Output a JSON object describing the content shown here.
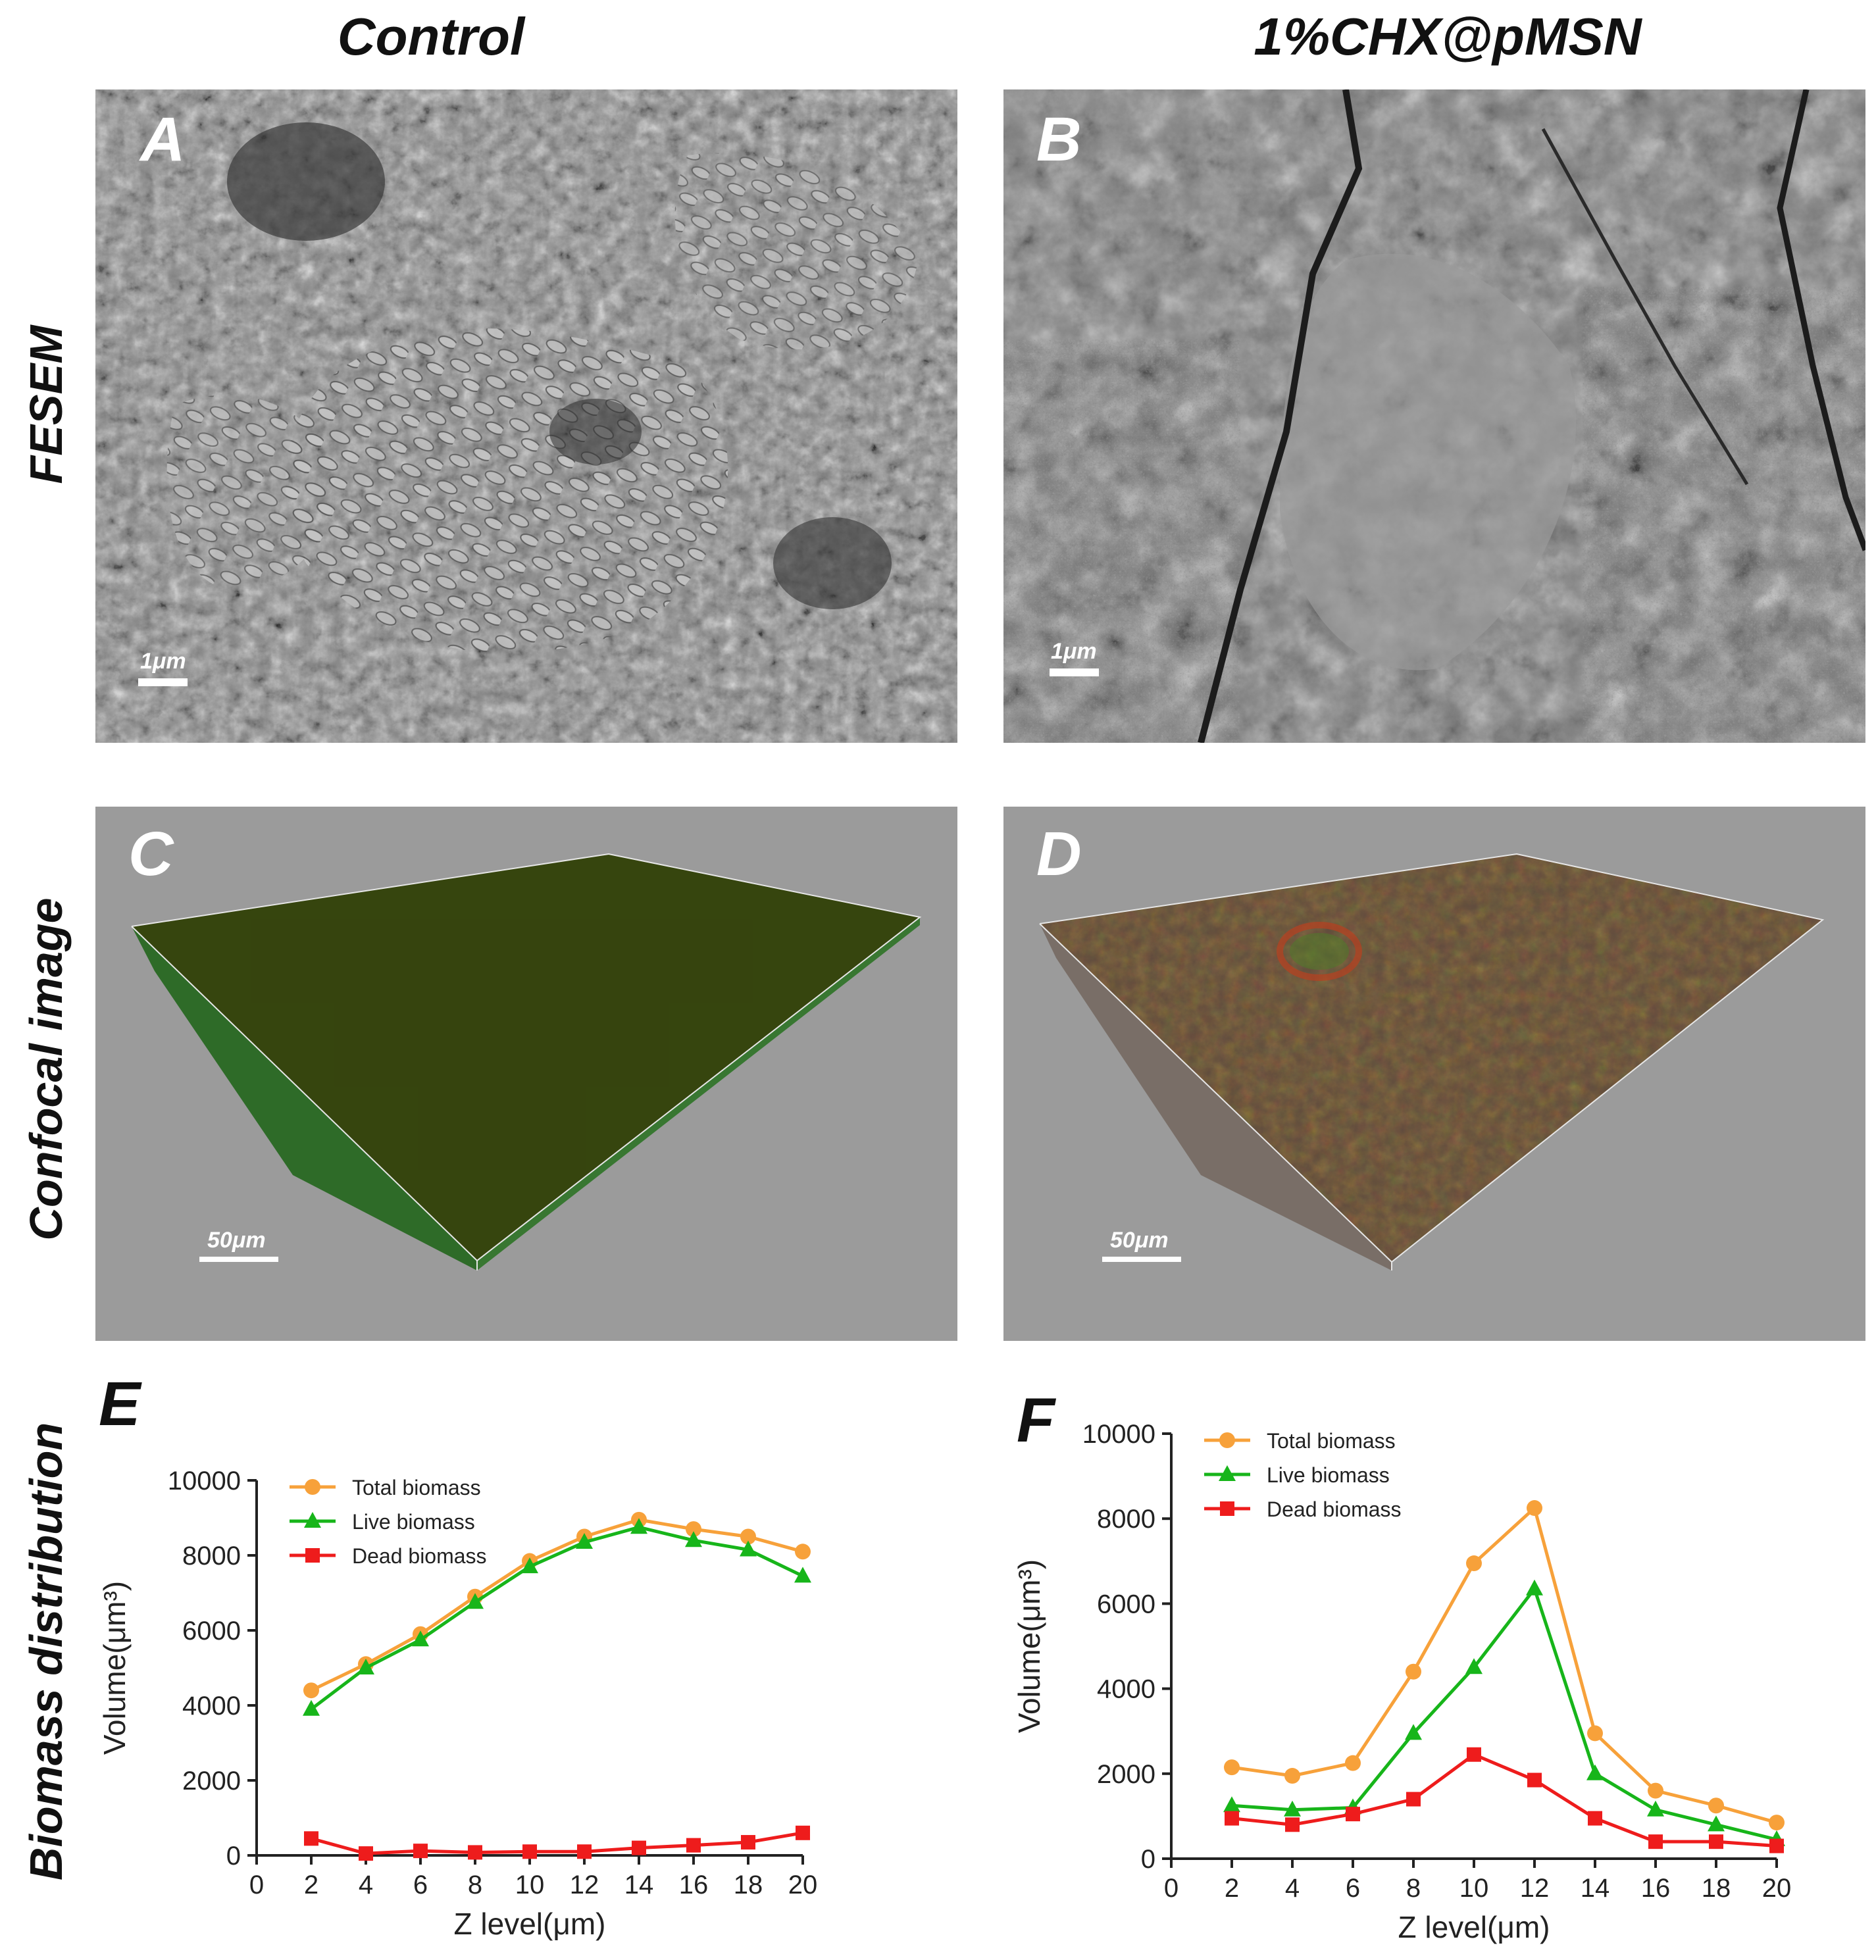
{
  "columns": {
    "left": "Control",
    "right": "1%CHX@pMSN"
  },
  "rows": {
    "fesem": "FESEM",
    "confocal": "Confocal image",
    "biomass": "Biomass distribution"
  },
  "panels": {
    "A": {
      "letter": "A",
      "scale": "1μm"
    },
    "B": {
      "letter": "B",
      "scale": "1μm"
    },
    "C": {
      "letter": "C",
      "scale": "50μm"
    },
    "D": {
      "letter": "D",
      "scale": "50μm"
    }
  },
  "colors": {
    "total": "#F7A13A",
    "live": "#17B51A",
    "dead": "#EE1C1C",
    "confocal_bg": "#9B9B9B"
  },
  "chart_data": [
    {
      "panel": "E",
      "type": "line",
      "xlabel": "Z level(μm)",
      "ylabel": "Volume(μm³)",
      "xlim": [
        0,
        20
      ],
      "ylim": [
        0,
        10000
      ],
      "xticks": [
        0,
        2,
        4,
        6,
        8,
        10,
        12,
        14,
        16,
        18,
        20
      ],
      "yticks": [
        0,
        2000,
        4000,
        6000,
        8000,
        10000
      ],
      "x": [
        2,
        4,
        6,
        8,
        10,
        12,
        14,
        16,
        18,
        20
      ],
      "legend": "top-left",
      "grid": false,
      "series": [
        {
          "name": "Total biomass",
          "marker": "circle",
          "values": [
            4400,
            5100,
            5900,
            6900,
            7850,
            8500,
            8950,
            8700,
            8500,
            8100
          ]
        },
        {
          "name": "Live biomass",
          "marker": "triangle",
          "values": [
            3900,
            5000,
            5750,
            6750,
            7700,
            8350,
            8750,
            8400,
            8150,
            7450
          ]
        },
        {
          "name": "Dead biomass",
          "marker": "square",
          "values": [
            450,
            50,
            120,
            80,
            100,
            100,
            200,
            270,
            350,
            600
          ]
        }
      ]
    },
    {
      "panel": "F",
      "type": "line",
      "xlabel": "Z level(μm)",
      "ylabel": "Volume(μm³)",
      "xlim": [
        0,
        20
      ],
      "ylim": [
        0,
        10000
      ],
      "xticks": [
        0,
        2,
        4,
        6,
        8,
        10,
        12,
        14,
        16,
        18,
        20
      ],
      "yticks": [
        0,
        2000,
        4000,
        6000,
        8000,
        10000
      ],
      "x": [
        2,
        4,
        6,
        8,
        10,
        12,
        14,
        16,
        18,
        20
      ],
      "legend": "top-left",
      "grid": false,
      "series": [
        {
          "name": "Total biomass",
          "marker": "circle",
          "values": [
            2150,
            1950,
            2250,
            4400,
            6950,
            8250,
            2950,
            1600,
            1250,
            850
          ]
        },
        {
          "name": "Live biomass",
          "marker": "triangle",
          "values": [
            1250,
            1150,
            1200,
            2950,
            4500,
            6350,
            2000,
            1150,
            800,
            450
          ]
        },
        {
          "name": "Dead biomass",
          "marker": "square",
          "values": [
            950,
            800,
            1050,
            1400,
            2450,
            1850,
            950,
            400,
            400,
            300
          ]
        }
      ]
    }
  ]
}
